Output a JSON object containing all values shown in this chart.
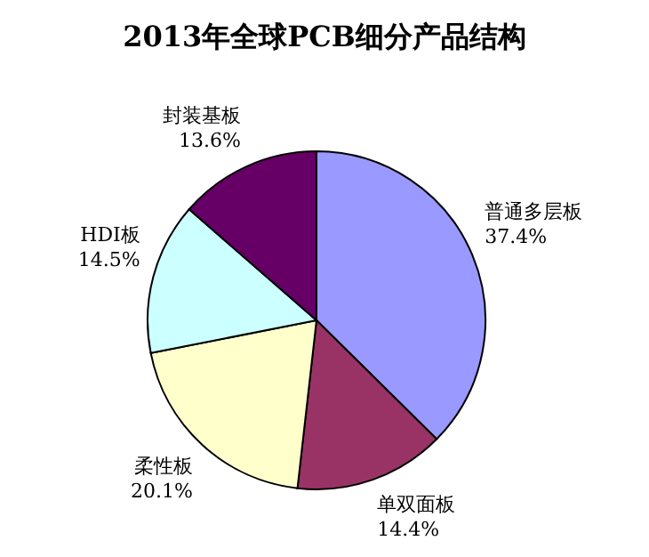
{
  "chart_data": {
    "type": "pie",
    "title": "2013年全球PCB细分产品结构",
    "categories": [
      "普通多层板",
      "单双面板",
      "柔性板",
      "HDI板",
      "封装基板"
    ],
    "values": [
      37.4,
      14.4,
      20.1,
      14.5,
      13.6
    ],
    "value_labels": [
      "37.4%",
      "14.4%",
      "20.1%",
      "14.5%",
      "13.6%"
    ],
    "colors": [
      "#9999ff",
      "#993366",
      "#ffffcc",
      "#ccffff",
      "#660066"
    ]
  }
}
